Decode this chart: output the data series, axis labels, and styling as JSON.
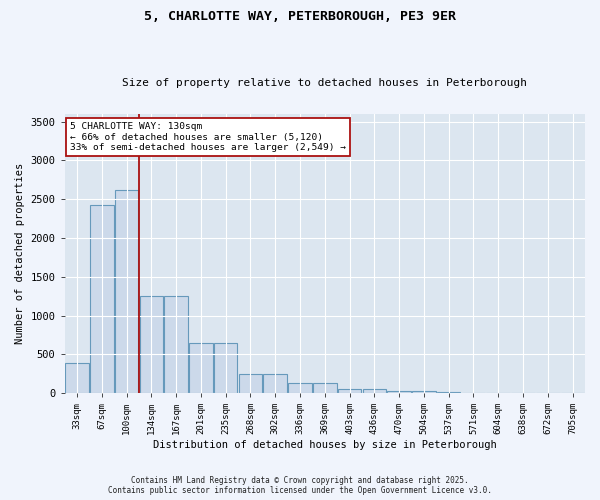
{
  "title_line1": "5, CHARLOTTE WAY, PETERBOROUGH, PE3 9ER",
  "title_line2": "Size of property relative to detached houses in Peterborough",
  "xlabel": "Distribution of detached houses by size in Peterborough",
  "ylabel": "Number of detached properties",
  "categories": [
    "33sqm",
    "67sqm",
    "100sqm",
    "134sqm",
    "167sqm",
    "201sqm",
    "235sqm",
    "268sqm",
    "302sqm",
    "336sqm",
    "369sqm",
    "403sqm",
    "436sqm",
    "470sqm",
    "504sqm",
    "537sqm",
    "571sqm",
    "604sqm",
    "638sqm",
    "672sqm",
    "705sqm"
  ],
  "values": [
    390,
    2420,
    2620,
    1250,
    1250,
    640,
    640,
    250,
    250,
    125,
    125,
    55,
    55,
    30,
    30,
    10,
    0,
    0,
    0,
    0,
    0
  ],
  "bar_color": "#ccd9ea",
  "bar_edge_color": "#6699bb",
  "vline_color": "#aa1111",
  "annotation_text": "5 CHARLOTTE WAY: 130sqm\n← 66% of detached houses are smaller (5,120)\n33% of semi-detached houses are larger (2,549) →",
  "annotation_box_facecolor": "#ffffff",
  "annotation_box_edgecolor": "#aa1111",
  "ylim": [
    0,
    3600
  ],
  "yticks": [
    0,
    500,
    1000,
    1500,
    2000,
    2500,
    3000,
    3500
  ],
  "fig_bg_color": "#f0f4fc",
  "ax_bg_color": "#dce6f0",
  "grid_color": "#ffffff",
  "footer_line1": "Contains HM Land Registry data © Crown copyright and database right 2025.",
  "footer_line2": "Contains public sector information licensed under the Open Government Licence v3.0."
}
